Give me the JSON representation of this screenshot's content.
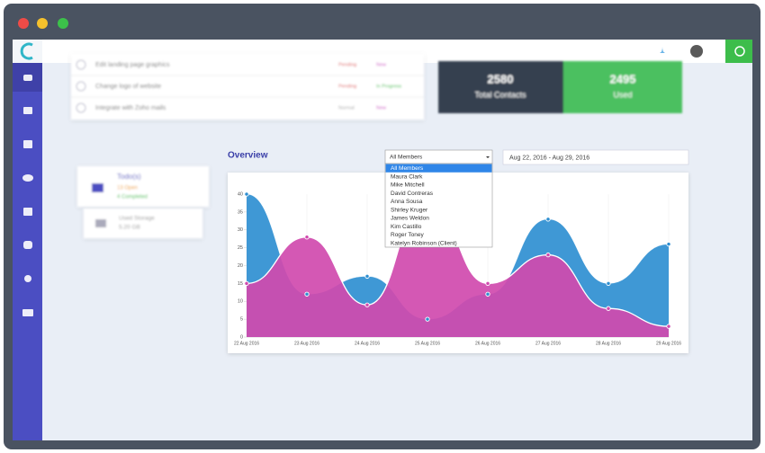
{
  "tasks": [
    {
      "name": "Edit landing page graphics",
      "status": "Pending",
      "tag": "New"
    },
    {
      "name": "Change logo of website",
      "status": "Pending",
      "tag": "In Progress"
    },
    {
      "name": "Integrate with Zoho mails",
      "status": "Normal",
      "tag": "New"
    }
  ],
  "stats": [
    {
      "value": "2580",
      "label": "Total Contacts"
    },
    {
      "value": "2495",
      "label": "Used"
    }
  ],
  "todo": {
    "title": "Todo(s)",
    "open": "13 Open",
    "completed": "4 Completed"
  },
  "storage": {
    "title": "Used Storage",
    "value": "5.20 GB"
  },
  "overview": {
    "title": "Overview",
    "select": "All Members",
    "options": [
      "All Members",
      "Maura Clark",
      "Mike Mitchell",
      "David Contreras",
      "Anna Sousa",
      "Shirley Kruger",
      "James Weldon",
      "Kim Castillo",
      "Roger Toney",
      "Katelyn Robinson (Client)"
    ],
    "date_range": "Aug 22, 2016 - Aug 29, 2016"
  },
  "chart_data": {
    "type": "area",
    "categories": [
      "22 Aug 2016",
      "23 Aug 2016",
      "24 Aug 2016",
      "25 Aug 2016",
      "26 Aug 2016",
      "27 Aug 2016",
      "28 Aug 2016",
      "29 Aug 2016"
    ],
    "series": [
      {
        "color": "#2f8fd1",
        "values": [
          40,
          12,
          17,
          5,
          12,
          33,
          15,
          26
        ]
      },
      {
        "color": "#d04aae",
        "values": [
          15,
          28,
          9,
          38,
          15,
          23,
          8,
          3
        ]
      }
    ],
    "ylim": [
      0,
      40
    ],
    "yticks": [
      0,
      5,
      10,
      15,
      20,
      25,
      30,
      35,
      40
    ]
  }
}
